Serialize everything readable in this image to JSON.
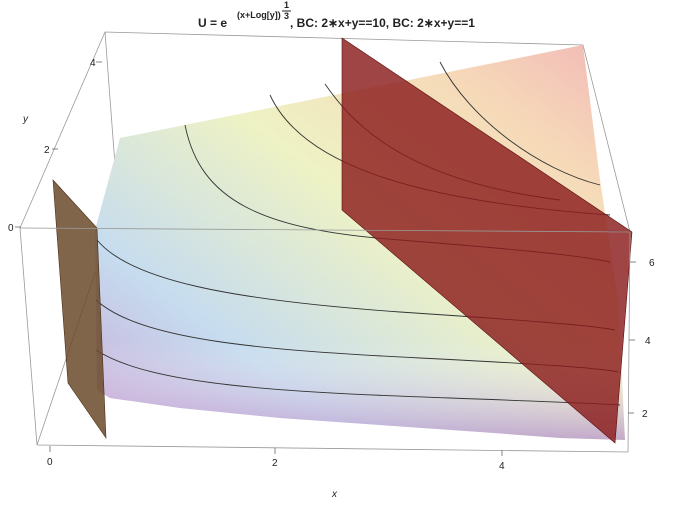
{
  "title": {
    "lhs": "U = e",
    "exponent": "(x+Log[y])",
    "power_num": "1",
    "power_den": "3",
    "rest": ", BC: 2∗x+y==10, BC: 2∗x+y==1"
  },
  "axes": {
    "x": {
      "label": "x",
      "ticks": [
        "0",
        "2",
        "4"
      ]
    },
    "y": {
      "label": "y",
      "ticks": [
        "0",
        "2",
        "4"
      ]
    },
    "z": {
      "ticks": [
        "2",
        "4",
        "6"
      ]
    }
  }
}
